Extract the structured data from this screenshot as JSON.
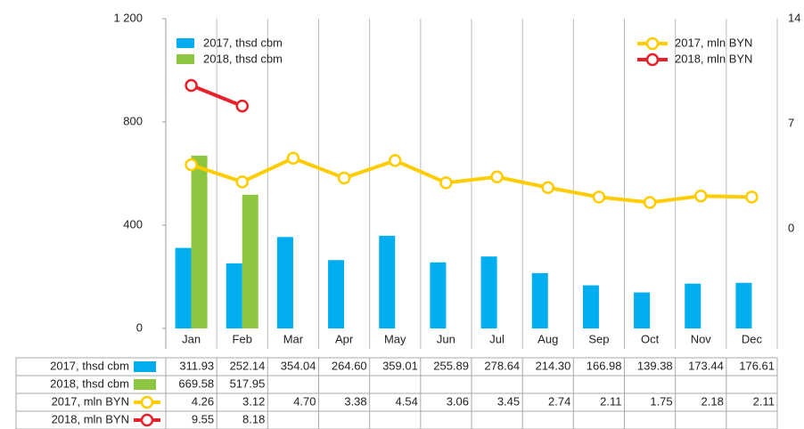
{
  "chart_data": {
    "type": "bar-line-table",
    "categories": [
      "Jan",
      "Feb",
      "Mar",
      "Apr",
      "May",
      "Jun",
      "Jul",
      "Aug",
      "Sep",
      "Oct",
      "Nov",
      "Dec"
    ],
    "ylim": [
      0,
      1200
    ],
    "yticks": [
      0,
      400,
      800,
      {
        "value": 1200,
        "label": "1 200"
      }
    ],
    "y2lim": [
      -6.65,
      14
    ],
    "y2ticks": [
      0,
      7,
      14
    ],
    "series": [
      {
        "name": "2017, thsd cbm",
        "type": "bar",
        "color": "#00aeef",
        "values": [
          311.93,
          252.14,
          354.04,
          264.6,
          359.01,
          255.89,
          278.64,
          214.3,
          166.98,
          139.38,
          173.44,
          176.61
        ],
        "value_labels": [
          "311.93",
          "252.14",
          "354.04",
          "264.60",
          "359.01",
          "255.89",
          "278.64",
          "214.30",
          "166.98",
          "139.38",
          "173.44",
          "176.61"
        ]
      },
      {
        "name": "2018, thsd cbm",
        "type": "bar",
        "color": "#8dc63f",
        "values": [
          669.58,
          517.95,
          null,
          null,
          null,
          null,
          null,
          null,
          null,
          null,
          null,
          null
        ],
        "value_labels": [
          "669.58",
          "517.95",
          null,
          null,
          null,
          null,
          null,
          null,
          null,
          null,
          null,
          null
        ]
      },
      {
        "name": "2017, mln BYN",
        "type": "line",
        "axis": "y2",
        "color": "#ffcc00",
        "values": [
          4.26,
          3.12,
          4.7,
          3.38,
          4.54,
          3.06,
          3.45,
          2.74,
          2.11,
          1.75,
          2.18,
          2.11
        ],
        "value_labels": [
          "4.26",
          "3.12",
          "4.70",
          "3.38",
          "4.54",
          "3.06",
          "3.45",
          "2.74",
          "2.11",
          "1.75",
          "2.18",
          "2.11"
        ]
      },
      {
        "name": "2018, mln BYN",
        "type": "line",
        "axis": "y2",
        "color": "#e8202a",
        "values": [
          9.55,
          8.18,
          null,
          null,
          null,
          null,
          null,
          null,
          null,
          null,
          null,
          null
        ],
        "value_labels": [
          "9.55",
          "8.18",
          null,
          null,
          null,
          null,
          null,
          null,
          null,
          null,
          null,
          null
        ]
      }
    ]
  }
}
